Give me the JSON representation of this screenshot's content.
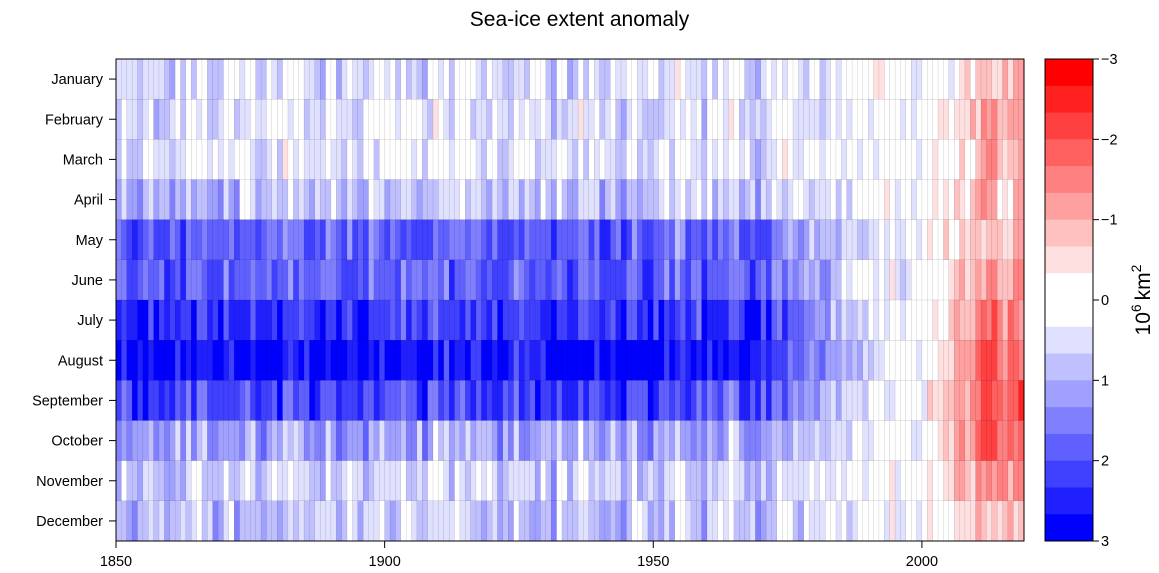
{
  "chart_data": {
    "type": "heatmap",
    "title": "Sea-ice extent anomaly",
    "x_ticks": [
      "1850",
      "1900",
      "1950",
      "2000"
    ],
    "x_range": [
      1850,
      2018
    ],
    "y_categories": [
      "January",
      "February",
      "March",
      "April",
      "May",
      "June",
      "July",
      "August",
      "September",
      "October",
      "November",
      "December"
    ],
    "colorbar": {
      "label_base": "10",
      "label_exp": "6",
      "label_unit": "km",
      "label_unit_exp": "2",
      "range": [
        -3,
        3
      ],
      "ticks": [
        {
          "value": -3,
          "label": "−3"
        },
        {
          "value": -2,
          "label": "−2"
        },
        {
          "value": -1,
          "label": "−1"
        },
        {
          "value": 0,
          "label": "0"
        },
        {
          "value": 1,
          "label": "1"
        },
        {
          "value": 2,
          "label": "2"
        },
        {
          "value": 3,
          "label": "3"
        }
      ],
      "colors": [
        "#ff0000",
        "#ff2020",
        "#ff4040",
        "#ff6060",
        "#ff8080",
        "#ffa0a0",
        "#ffc0c0",
        "#ffe0e0",
        "#ffffff",
        "#ffffff",
        "#e0e0ff",
        "#c0c0ff",
        "#a0a0ff",
        "#8080ff",
        "#6060ff",
        "#4040ff",
        "#2020ff",
        "#0000ff"
      ]
    },
    "month_profile": [
      {
        "month": "January",
        "early": 0.4,
        "late": -0.7
      },
      {
        "month": "February",
        "early": 0.4,
        "late": -0.9
      },
      {
        "month": "March",
        "early": 0.3,
        "late": -0.8
      },
      {
        "month": "April",
        "early": 0.8,
        "late": -0.8
      },
      {
        "month": "May",
        "early": 1.8,
        "late": -0.8
      },
      {
        "month": "June",
        "early": 1.8,
        "late": -1.0
      },
      {
        "month": "July",
        "early": 2.3,
        "late": -1.5
      },
      {
        "month": "August",
        "early": 2.7,
        "late": -1.7
      },
      {
        "month": "September",
        "early": 2.1,
        "late": -2.0
      },
      {
        "month": "October",
        "early": 1.1,
        "late": -1.9
      },
      {
        "month": "November",
        "early": 0.6,
        "late": -1.2
      },
      {
        "month": "December",
        "early": 0.7,
        "late": -0.8
      }
    ]
  }
}
